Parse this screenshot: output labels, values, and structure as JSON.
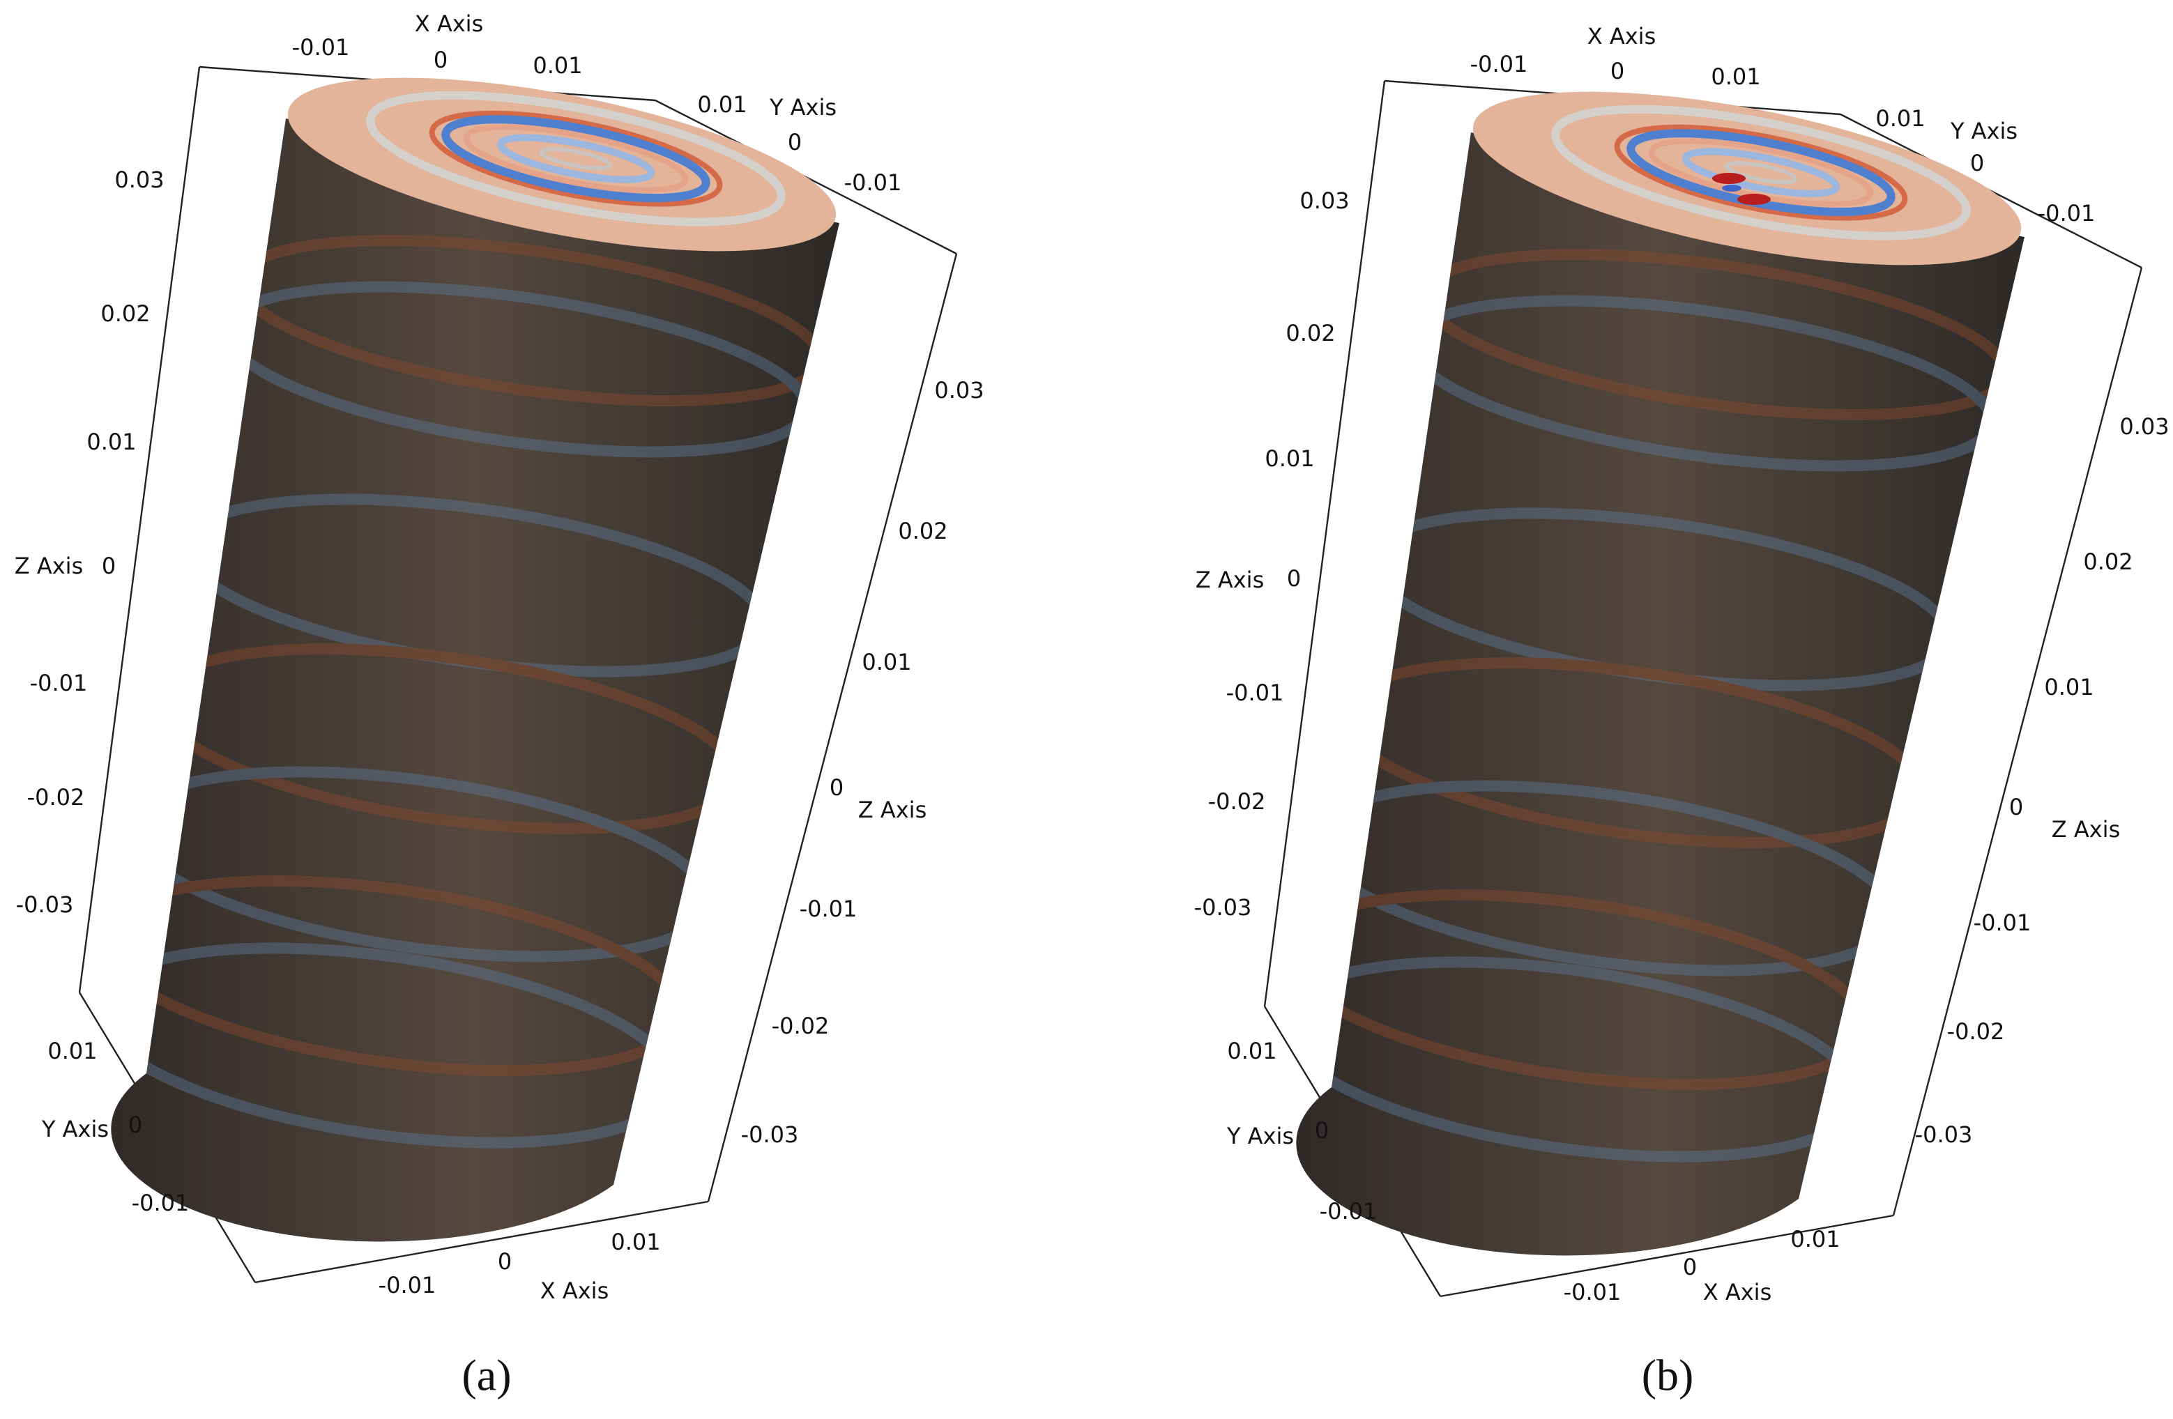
{
  "panels": [
    {
      "caption": "(a)",
      "axes": [
        {
          "title": "X Axis",
          "ticks": [
            "-0.01",
            "0",
            "0.01"
          ]
        },
        {
          "title": "Y Axis",
          "ticks": [
            "0.01",
            "0",
            "-0.01"
          ]
        },
        {
          "title": "Z Axis",
          "ticks": [
            "0.03",
            "0.02",
            "0.01",
            "0",
            "-0.01",
            "-0.02",
            "-0.03"
          ]
        },
        {
          "title": "Z Axis",
          "ticks": [
            "0.03",
            "0.02",
            "0.01",
            "0",
            "-0.01",
            "-0.02",
            "-0.03"
          ]
        },
        {
          "title": "Y Axis",
          "ticks": [
            "0.01",
            "0",
            "-0.01"
          ]
        },
        {
          "title": "X Axis",
          "ticks": [
            "-0.01",
            "0",
            "0.01"
          ]
        }
      ]
    },
    {
      "caption": "(b)",
      "axes": [
        {
          "title": "X Axis",
          "ticks": [
            "-0.01",
            "0",
            "0.01"
          ]
        },
        {
          "title": "Y Axis",
          "ticks": [
            "0.01",
            "0",
            "-0.01"
          ]
        },
        {
          "title": "Z Axis",
          "ticks": [
            "0.03",
            "0.02",
            "0.01",
            "0",
            "-0.01",
            "-0.02",
            "-0.03"
          ]
        },
        {
          "title": "Z Axis",
          "ticks": [
            "0.03",
            "0.02",
            "0.01",
            "0",
            "-0.01",
            "-0.02",
            "-0.03"
          ]
        },
        {
          "title": "Y Axis",
          "ticks": [
            "0.01",
            "0",
            "-0.01"
          ]
        },
        {
          "title": "X Axis",
          "ticks": [
            "-0.01",
            "0",
            "0.01"
          ]
        }
      ]
    }
  ]
}
